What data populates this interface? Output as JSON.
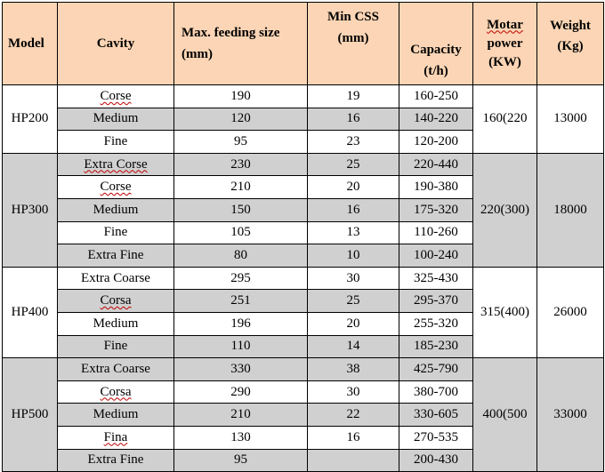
{
  "headers": {
    "model": "Model",
    "cavity": "Cavity",
    "feeding_line1": "Max. feeding size",
    "feeding_line2": "(mm)",
    "css_line1": "Min CSS",
    "css_line2": "(mm)",
    "capacity_line1": "Capacity",
    "capacity_line2": "(t/h)",
    "motor_line1": "Motar",
    "motor_line2": "power",
    "motor_line3": "(KW)",
    "weight_line1": "Weight",
    "weight_line2": "(Kg)"
  },
  "models": [
    {
      "model": "HP200",
      "motor_power": "160(220",
      "weight": "13000",
      "rows": [
        {
          "cavity": "Corse",
          "feed": "190",
          "css": "19",
          "capacity": "160-250"
        },
        {
          "cavity": "Medium",
          "feed": "120",
          "css": "16",
          "capacity": "140-220"
        },
        {
          "cavity": "Fine",
          "feed": "95",
          "css": "23",
          "capacity": "120-200"
        }
      ]
    },
    {
      "model": "HP300",
      "motor_power": "220(300)",
      "weight": "18000",
      "rows": [
        {
          "cavity": "Extra Corse",
          "feed": "230",
          "css": "25",
          "capacity": "220-440"
        },
        {
          "cavity": "Corse",
          "feed": "210",
          "css": "20",
          "capacity": "190-380"
        },
        {
          "cavity": "Medium",
          "feed": "150",
          "css": "16",
          "capacity": "175-320"
        },
        {
          "cavity": "Fine",
          "feed": "105",
          "css": "13",
          "capacity": "110-260"
        },
        {
          "cavity": "Extra Fine",
          "feed": "80",
          "css": "10",
          "capacity": "100-240"
        }
      ]
    },
    {
      "model": "HP400",
      "motor_power": "315(400)",
      "weight": "26000",
      "rows": [
        {
          "cavity": "Extra Coarse",
          "feed": "295",
          "css": "30",
          "capacity": "325-430"
        },
        {
          "cavity": "Corsa",
          "feed": "251",
          "css": "25",
          "capacity": "295-370"
        },
        {
          "cavity": "Medium",
          "feed": "196",
          "css": "20",
          "capacity": "255-320"
        },
        {
          "cavity": "Fine",
          "feed": "110",
          "css": "14",
          "capacity": "185-230"
        }
      ]
    },
    {
      "model": "HP500",
      "motor_power": "400(500",
      "weight": "33000",
      "rows": [
        {
          "cavity": "Extra Coarse",
          "feed": "330",
          "css": "38",
          "capacity": "425-790"
        },
        {
          "cavity": "Corsa",
          "feed": "290",
          "css": "30",
          "capacity": "380-700"
        },
        {
          "cavity": "Medium",
          "feed": "210",
          "css": "22",
          "capacity": "330-605"
        },
        {
          "cavity": "Fina",
          "feed": "130",
          "css": "16",
          "capacity": "270-535"
        },
        {
          "cavity": "Extra Fine",
          "feed": "95",
          "css": "",
          "capacity": "200-430"
        }
      ]
    }
  ],
  "colors": {
    "header_bg": "#fbd5b5",
    "gray_cell": "#d0d0d0",
    "white_cell": "#ffffff",
    "spellcheck_underline": "#c00000"
  }
}
